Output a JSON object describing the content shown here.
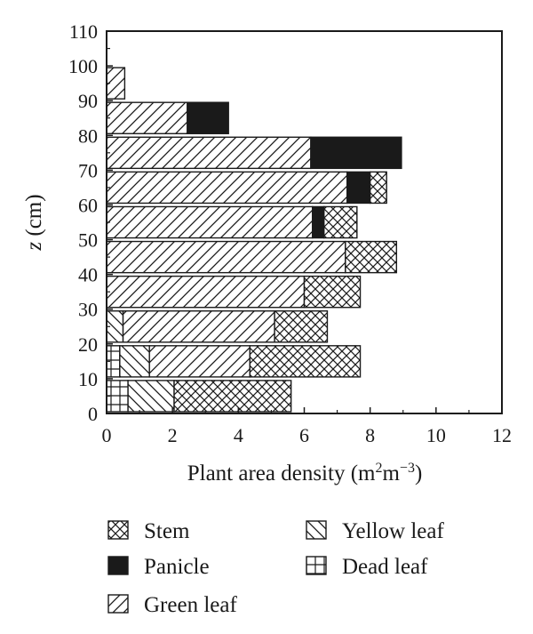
{
  "chart_data": {
    "type": "bar",
    "orientation": "horizontal",
    "stacked": true,
    "xlabel": {
      "text": "Plant area density (m",
      "sup1": "2",
      "mid": "m",
      "sup2": "−3",
      "close": ")"
    },
    "ylabel": {
      "italic": "z",
      "rest": " (cm)"
    },
    "xlim": [
      0,
      12
    ],
    "ylim": [
      0,
      110
    ],
    "xticks": [
      0,
      2,
      4,
      6,
      8,
      10,
      12
    ],
    "yticks": [
      0,
      10,
      20,
      30,
      40,
      50,
      60,
      70,
      80,
      90,
      100,
      110
    ],
    "bin_height": 10,
    "categories": [
      0,
      10,
      20,
      30,
      40,
      50,
      60,
      70,
      80,
      90
    ],
    "series": [
      {
        "name": "Dead leaf",
        "pattern": "dead",
        "values": [
          0.65,
          0.4,
          0,
          0,
          0,
          0,
          0,
          0,
          0,
          0
        ]
      },
      {
        "name": "Yellow leaf",
        "pattern": "yellow",
        "values": [
          1.4,
          0.9,
          0.5,
          0,
          0,
          0,
          0,
          0,
          0,
          0
        ]
      },
      {
        "name": "Green leaf",
        "pattern": "green",
        "values": [
          0,
          3.05,
          4.6,
          6.0,
          7.25,
          6.25,
          7.3,
          6.2,
          2.45,
          0.55
        ]
      },
      {
        "name": "Panicle",
        "pattern": "panicle",
        "values": [
          0,
          0,
          0,
          0,
          0,
          0.35,
          0.7,
          2.75,
          1.25,
          0
        ]
      },
      {
        "name": "Stem",
        "pattern": "stem",
        "values": [
          3.55,
          3.35,
          1.6,
          1.7,
          1.55,
          1.0,
          0.5,
          0,
          0,
          0
        ]
      }
    ],
    "legend": {
      "placement": "bottom",
      "items": [
        {
          "label": "Stem",
          "pattern": "stem"
        },
        {
          "label": "Yellow leaf",
          "pattern": "yellow"
        },
        {
          "label": "Panicle",
          "pattern": "panicle"
        },
        {
          "label": "Dead leaf",
          "pattern": "dead"
        },
        {
          "label": "Green leaf",
          "pattern": "green"
        }
      ]
    },
    "grid": false
  }
}
